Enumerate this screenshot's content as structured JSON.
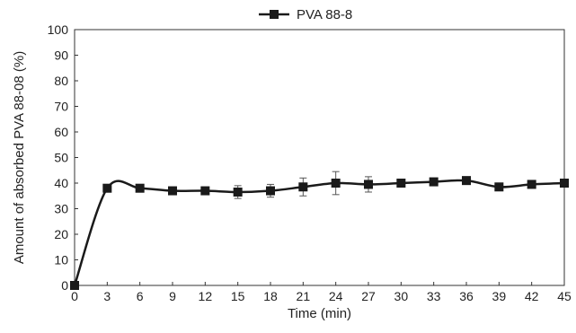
{
  "chart_data": {
    "type": "line",
    "title": "",
    "xlabel": "Time (min)",
    "ylabel": "Amount of absorbed PVA 88-08 (%)",
    "xlim": [
      0,
      45
    ],
    "ylim": [
      0,
      100
    ],
    "x_ticks": [
      0,
      3,
      6,
      9,
      12,
      15,
      18,
      21,
      24,
      27,
      30,
      33,
      36,
      39,
      42,
      45
    ],
    "y_ticks": [
      0,
      10,
      20,
      30,
      40,
      50,
      60,
      70,
      80,
      90,
      100
    ],
    "grid": false,
    "legend_position": "top-center",
    "series": [
      {
        "name": "PVA 88-8",
        "color": "#1a1a1a",
        "marker": "square",
        "x": [
          0,
          3,
          6,
          9,
          12,
          15,
          18,
          21,
          24,
          27,
          30,
          33,
          36,
          39,
          42,
          45
        ],
        "y": [
          0,
          38,
          38,
          37,
          37,
          36.5,
          37,
          38.5,
          40,
          39.5,
          40,
          40.5,
          41,
          38.5,
          39.5,
          40
        ],
        "error": [
          0,
          1,
          1,
          0.8,
          0.8,
          2.5,
          2.5,
          3.5,
          4.5,
          3,
          1,
          1,
          1,
          1,
          1,
          1
        ]
      }
    ]
  }
}
